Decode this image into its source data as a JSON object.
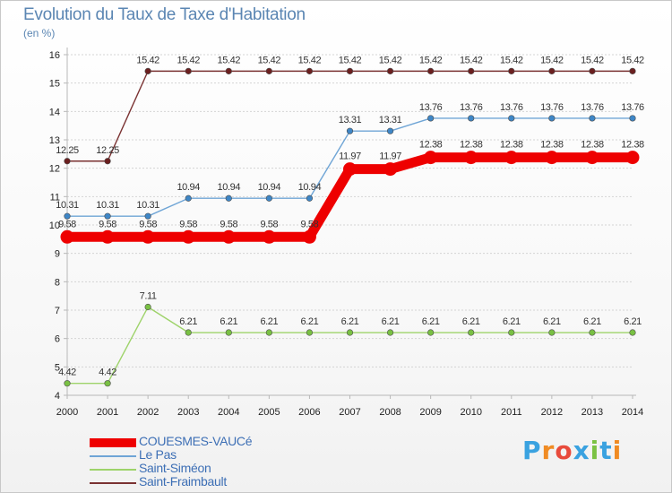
{
  "header": {
    "title": "Evolution du Taux de Taxe d'Habitation",
    "unit": "(en %)"
  },
  "colors": {
    "axis": "#b8b8b8",
    "grid": "#d4d4d4",
    "text": "#222222",
    "title": "#5b86b3"
  },
  "brand": {
    "logo_text": "Proxiti",
    "letter_colors": [
      "#3aa2e0",
      "#f08b23",
      "#e84b3c",
      "#3aa2e0",
      "#7bc243",
      "#3aa2e0",
      "#f08b23"
    ]
  },
  "chart_data": {
    "type": "line",
    "title": "Evolution du Taux de Taxe d'Habitation",
    "ylabel": "(en %)",
    "xlabel": "",
    "x": [
      2000,
      2001,
      2002,
      2003,
      2004,
      2005,
      2006,
      2007,
      2008,
      2009,
      2010,
      2011,
      2012,
      2013,
      2014
    ],
    "ylim": [
      4,
      16
    ],
    "yticks": [
      4,
      5,
      6,
      7,
      8,
      9,
      10,
      11,
      12,
      13,
      14,
      15,
      16
    ],
    "grid": "horizontal",
    "series": [
      {
        "name": "COUESMES-VAUCé",
        "color": "#ee0000",
        "marker_color": "#ee0000",
        "emphasis": "thick",
        "values": [
          9.58,
          9.58,
          9.58,
          9.58,
          9.58,
          9.58,
          9.58,
          11.97,
          11.97,
          12.38,
          12.38,
          12.38,
          12.38,
          12.38,
          12.38
        ],
        "labels": [
          "9.58",
          "9.58",
          "9.58",
          "9.58",
          "9.58",
          "9.58",
          "9.58",
          "11.97",
          "11.97",
          "12.38",
          "12.38",
          "12.38",
          "12.38",
          "12.38",
          "12.38"
        ]
      },
      {
        "name": "Le Pas",
        "color": "#6fa5d6",
        "marker_color": "#3e86c6",
        "emphasis": "normal",
        "values": [
          10.31,
          10.31,
          10.31,
          10.94,
          10.94,
          10.94,
          10.94,
          13.31,
          13.31,
          13.76,
          13.76,
          13.76,
          13.76,
          13.76,
          13.76
        ],
        "labels": [
          "10.31",
          "10.31",
          "10.31",
          "10.94",
          "10.94",
          "10.94",
          "10.94",
          "13.31",
          "13.31",
          "13.76",
          "13.76",
          "13.76",
          "13.76",
          "13.76",
          "13.76"
        ]
      },
      {
        "name": "Saint-Siméon",
        "color": "#9ed36a",
        "marker_color": "#79c043",
        "emphasis": "normal",
        "values": [
          4.42,
          4.42,
          7.11,
          6.21,
          6.21,
          6.21,
          6.21,
          6.21,
          6.21,
          6.21,
          6.21,
          6.21,
          6.21,
          6.21,
          6.21
        ],
        "labels": [
          "4.42",
          "4.42",
          "7.11",
          "6.21",
          "6.21",
          "6.21",
          "6.21",
          "6.21",
          "6.21",
          "6.21",
          "6.21",
          "6.21",
          "6.21",
          "6.21",
          "6.21"
        ]
      },
      {
        "name": "Saint-Fraimbault",
        "color": "#7a3232",
        "marker_color": "#6b1f1f",
        "emphasis": "normal",
        "values": [
          12.25,
          12.25,
          15.42,
          15.42,
          15.42,
          15.42,
          15.42,
          15.42,
          15.42,
          15.42,
          15.42,
          15.42,
          15.42,
          15.42,
          15.42
        ],
        "labels": [
          "12.25",
          "12.25",
          "15.42",
          "15.42",
          "15.42",
          "15.42",
          "15.42",
          "15.42",
          "15.42",
          "15.42",
          "15.42",
          "15.42",
          "15.42",
          "15.42",
          "15.42"
        ]
      }
    ],
    "legend": {
      "position": "bottom-left",
      "entries": [
        "COUESMES-VAUCé",
        "Le Pas",
        "Saint-Siméon",
        "Saint-Fraimbault"
      ]
    }
  }
}
